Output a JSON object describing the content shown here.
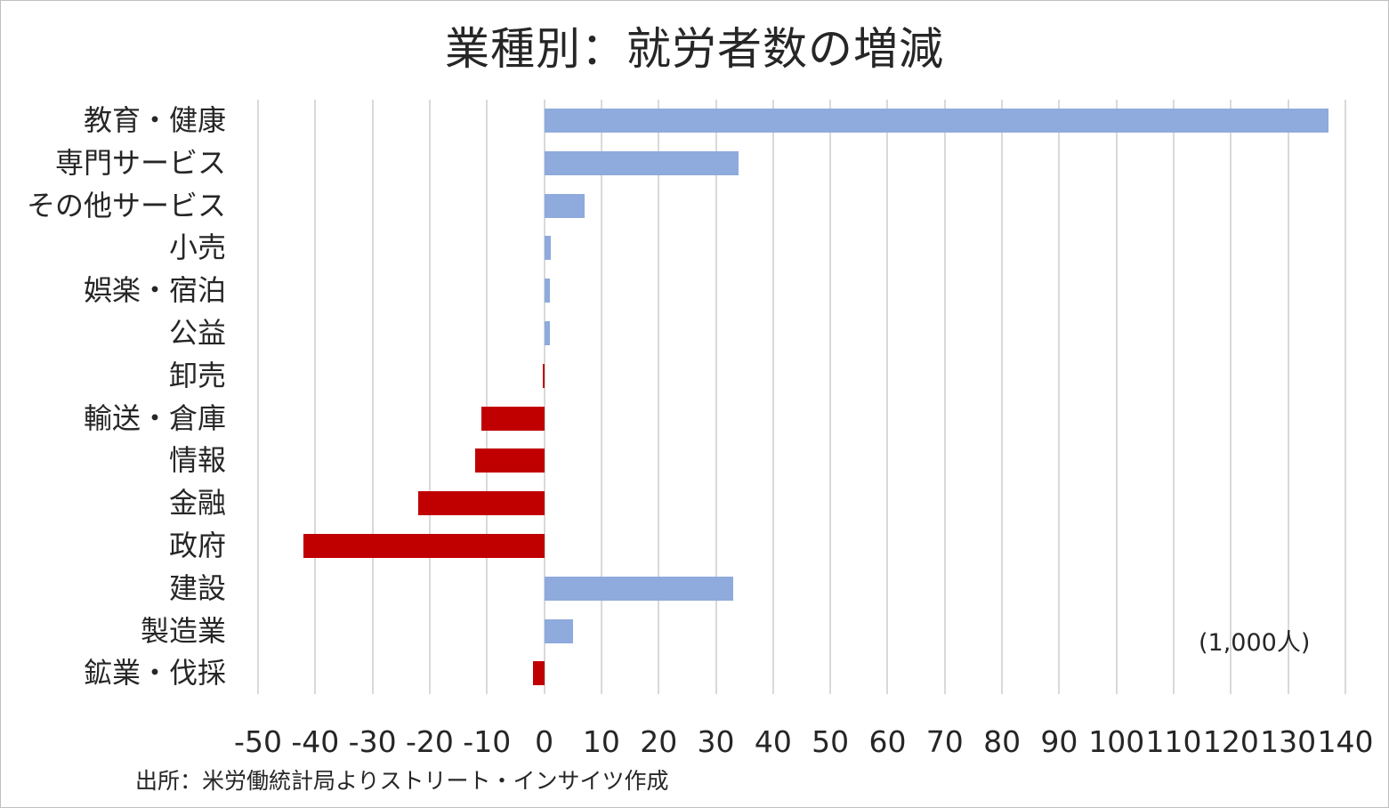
{
  "chart_data": {
    "type": "bar",
    "orientation": "horizontal",
    "title": "業種別：就労者数の増減",
    "xlabel": "",
    "ylabel": "",
    "unit_label": "(1,000人)",
    "source": "出所：米労働統計局よりストリート・インサイツ作成",
    "xlim": [
      -50,
      140
    ],
    "grid": true,
    "legend": null,
    "x_ticks": [
      "-50",
      "-40",
      "-30",
      "-20",
      "-10",
      "0",
      "10",
      "20",
      "30",
      "40",
      "50",
      "60",
      "70",
      "80",
      "90",
      "100",
      "110",
      "120",
      "130",
      "140"
    ],
    "categories": [
      "教育・健康",
      "専門サービス",
      "その他サービス",
      "小売",
      "娯楽・宿泊",
      "公益",
      "卸売",
      "輸送・倉庫",
      "情報",
      "金融",
      "政府",
      "建設",
      "製造業",
      "鉱業・伐採"
    ],
    "values": [
      137,
      34,
      7,
      1.2,
      1,
      1,
      -0.3,
      -11,
      -12,
      -22,
      -42,
      33,
      5,
      -2
    ],
    "colors": {
      "positive": "#8faadc",
      "negative": "#c00000",
      "gridline": "#d9d9d9",
      "text": "#262626"
    }
  }
}
